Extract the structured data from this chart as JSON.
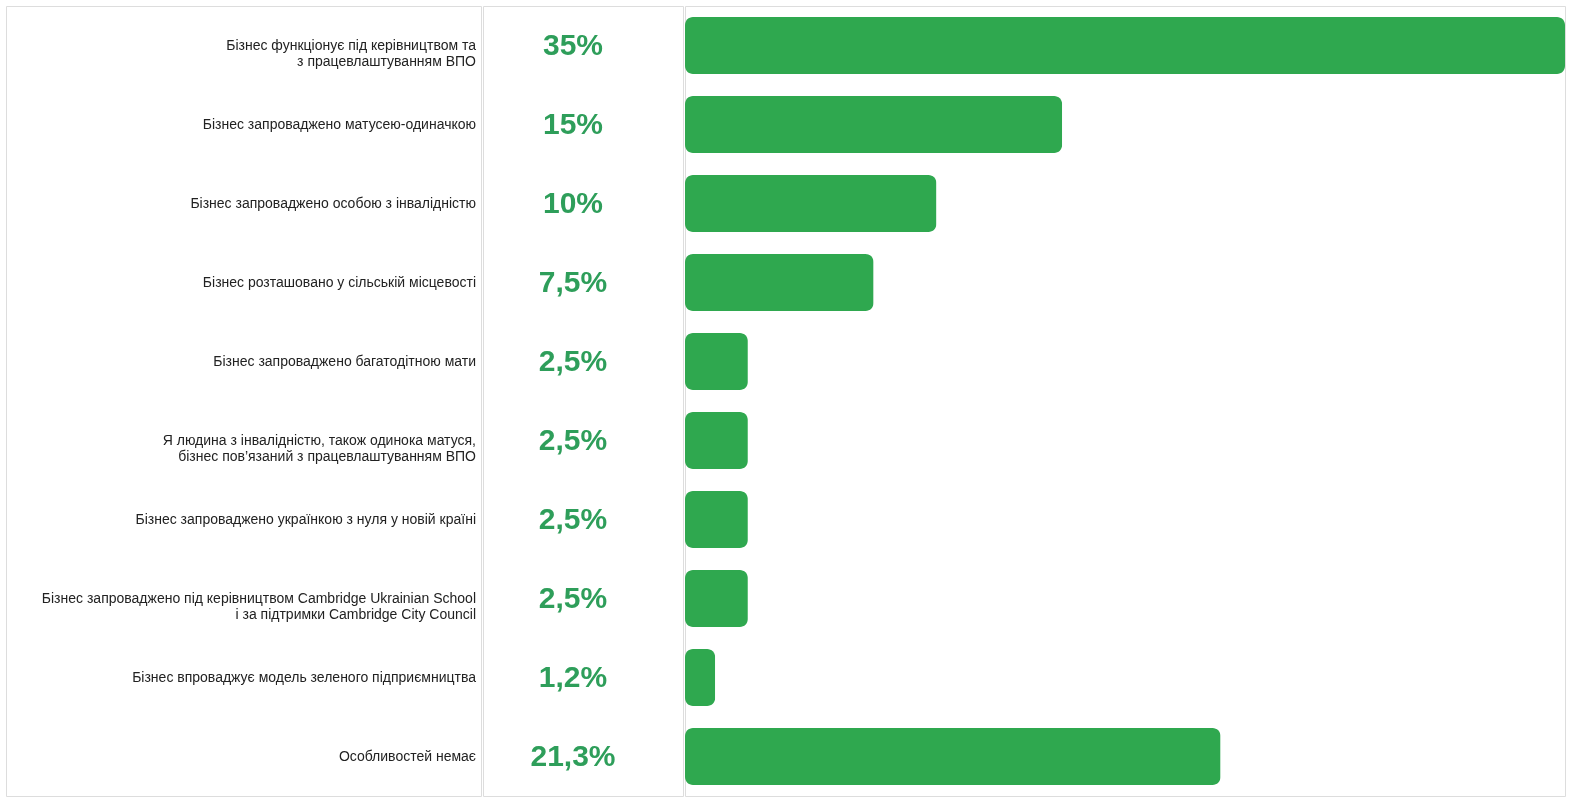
{
  "chart_data": {
    "type": "bar",
    "orientation": "horizontal",
    "categories": [
      "Бізнес функціонує під керівництвом та\nз працевлаштуванням ВПО",
      "Бізнес запроваджено матусею-одиначкою",
      "Бізнес запроваджено особою з інвалідністю",
      "Бізнес розташовано у сільській місцевості",
      "Бізнес запроваджено багатодітною мати",
      "Я людина з інвалідністю, також одинока матуся,\nбізнес пов’язаний з працевлаштуванням ВПО",
      "Бізнес запроваджено українкою з нуля у новій країні",
      "Бізнес запроваджено під керівництвом Cambridge Ukrainian School\nі за підтримки Cambridge City Council",
      "Бізнес впроваджує модель зеленого підприємництва",
      "Особливостей немає"
    ],
    "values": [
      35,
      15,
      10,
      7.5,
      2.5,
      2.5,
      2.5,
      2.5,
      1.2,
      21.3
    ],
    "value_labels": [
      "35%",
      "15%",
      "10%",
      "7,5%",
      "2,5%",
      "2,5%",
      "2,5%",
      "2,5%",
      "1,2%",
      "21,3%"
    ],
    "color": "#2fa84f",
    "xlim": [
      0,
      35
    ],
    "tick_labels": false
  }
}
